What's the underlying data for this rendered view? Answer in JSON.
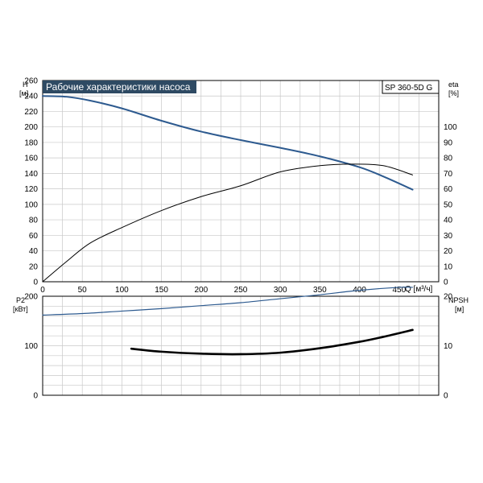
{
  "chart_data": [
    {
      "type": "line",
      "title": "Рабочие характеристики насоса",
      "model_label": "SP 360-5D G",
      "x_axis": {
        "label": "Q [м³/ч]",
        "range": [
          0,
          500
        ],
        "ticks": [
          0,
          50,
          100,
          150,
          200,
          250,
          300,
          350,
          400,
          450
        ]
      },
      "y_left": {
        "label_line1": "H",
        "label_line2": "[м]",
        "range": [
          0,
          260
        ],
        "ticks": [
          0,
          20,
          40,
          60,
          80,
          100,
          120,
          140,
          160,
          180,
          200,
          220,
          240,
          260
        ]
      },
      "y_right": {
        "label_line1": "eta",
        "label_line2": "[%]",
        "range": [
          0,
          130
        ],
        "ticks": [
          0,
          10,
          20,
          30,
          40,
          50,
          60,
          70,
          80,
          90,
          100
        ]
      },
      "grid": true,
      "series": [
        {
          "key": "head",
          "axis": "left",
          "color": "#2d5a8f",
          "x": [
            0,
            30,
            60,
            100,
            150,
            200,
            250,
            300,
            350,
            400,
            430,
            467
          ],
          "y": [
            240,
            239,
            234,
            224,
            208,
            194,
            183,
            173,
            162,
            148,
            136,
            119
          ]
        },
        {
          "key": "efficiency",
          "axis": "right",
          "color": "#000000",
          "x": [
            0,
            30,
            60,
            100,
            150,
            200,
            250,
            300,
            350,
            390,
            430,
            467
          ],
          "y": [
            0,
            13,
            25,
            35,
            46,
            55,
            62,
            71,
            75,
            76,
            75,
            69
          ]
        }
      ]
    },
    {
      "type": "line",
      "x_axis": {
        "range": [
          0,
          500
        ],
        "ticks": []
      },
      "y_left": {
        "label_line1": "P2",
        "label_line2": "[кВт]",
        "range": [
          0,
          200
        ],
        "ticks": [
          0,
          100,
          200
        ]
      },
      "y_right": {
        "label_line1": "NPSH",
        "label_line2": "[м]",
        "range": [
          0,
          20
        ],
        "ticks": [
          0,
          10,
          20
        ]
      },
      "grid": true,
      "series": [
        {
          "key": "power",
          "axis": "left",
          "color": "#2d5a8f",
          "x": [
            0,
            50,
            100,
            150,
            200,
            250,
            300,
            350,
            400,
            450,
            467
          ],
          "y": [
            162,
            165,
            170,
            175,
            181,
            187,
            195,
            203,
            212,
            218,
            218
          ]
        },
        {
          "key": "npsh",
          "axis": "right",
          "color": "#000000",
          "x": [
            112,
            150,
            200,
            250,
            300,
            350,
            400,
            430,
            467
          ],
          "y": [
            9.4,
            8.8,
            8.4,
            8.3,
            8.6,
            9.5,
            10.8,
            11.8,
            13.2
          ]
        }
      ]
    }
  ]
}
